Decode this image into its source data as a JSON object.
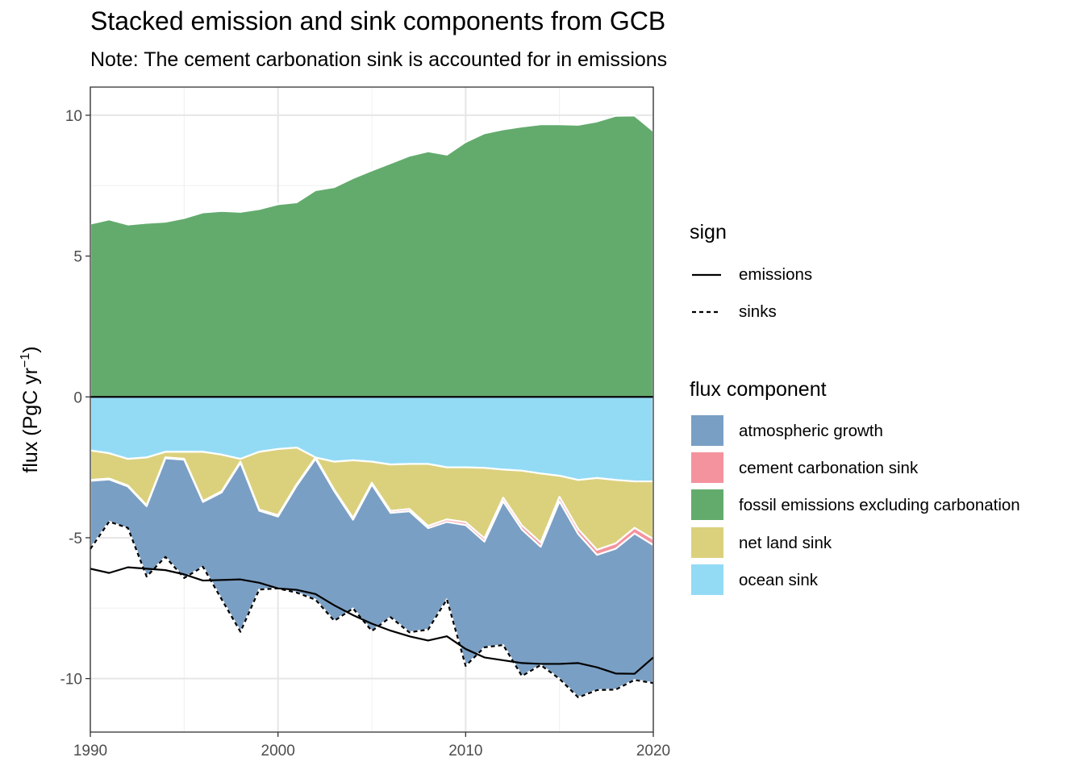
{
  "title": "Stacked emission and sink components from GCB",
  "subtitle": "Note: The cement carbonation sink is accounted for in emissions",
  "chart_data": {
    "type": "area",
    "ylabel": "flux (PgC yr",
    "ylabel_sup": "−1",
    "ylabel_end": ")",
    "xlim": [
      1990,
      2020
    ],
    "ylim": [
      -11.9,
      11
    ],
    "x_ticks": [
      1990,
      2000,
      2010,
      2020
    ],
    "y_ticks": [
      10,
      5,
      0,
      -5,
      -10
    ],
    "y_tick_labels": [
      "10",
      "5",
      "0",
      "-5",
      "-10"
    ],
    "grid": true,
    "legend_position": "right",
    "x": [
      1990,
      1991,
      1992,
      1993,
      1994,
      1995,
      1996,
      1997,
      1998,
      1999,
      2000,
      2001,
      2002,
      2003,
      2004,
      2005,
      2006,
      2007,
      2008,
      2009,
      2010,
      2011,
      2012,
      2013,
      2014,
      2015,
      2016,
      2017,
      2018,
      2019,
      2020
    ],
    "series": [
      {
        "name": "fossil emissions excluding carbonation",
        "color": "#63ab6d",
        "values": [
          6.15,
          6.3,
          6.12,
          6.18,
          6.22,
          6.35,
          6.55,
          6.6,
          6.57,
          6.67,
          6.84,
          6.91,
          7.34,
          7.45,
          7.77,
          8.04,
          8.3,
          8.56,
          8.72,
          8.6,
          9.05,
          9.36,
          9.5,
          9.6,
          9.68,
          9.68,
          9.66,
          9.78,
          9.98,
          9.99,
          9.44
        ]
      },
      {
        "name": "ocean sink",
        "color": "#93dbf4",
        "values": [
          -1.9,
          -2.0,
          -2.2,
          -2.15,
          -1.95,
          -1.95,
          -1.95,
          -2.05,
          -2.2,
          -1.95,
          -1.85,
          -1.8,
          -2.15,
          -2.3,
          -2.25,
          -2.3,
          -2.4,
          -2.38,
          -2.38,
          -2.5,
          -2.5,
          -2.52,
          -2.58,
          -2.62,
          -2.72,
          -2.8,
          -2.95,
          -2.88,
          -2.95,
          -3.0,
          -3.0
        ]
      },
      {
        "name": "net land sink",
        "color": "#dbd17d",
        "values": [
          -1.05,
          -0.9,
          -0.95,
          -1.7,
          -0.2,
          -0.25,
          -1.75,
          -1.3,
          -0.1,
          -2.05,
          -2.35,
          -1.3,
          0.0,
          -1.0,
          -2.05,
          -0.75,
          -1.65,
          -1.6,
          -2.2,
          -1.85,
          -1.95,
          -2.5,
          -1.0,
          -1.95,
          -2.45,
          -0.75,
          -1.75,
          -2.55,
          -2.25,
          -1.65,
          -2.05
        ]
      },
      {
        "name": "cement carbonation sink",
        "color": "#f4939e",
        "values": [
          -0.03,
          -0.03,
          -0.03,
          -0.03,
          -0.03,
          -0.03,
          -0.03,
          -0.04,
          -0.04,
          -0.04,
          -0.05,
          -0.05,
          -0.05,
          -0.05,
          -0.06,
          -0.06,
          -0.07,
          -0.08,
          -0.08,
          -0.09,
          -0.1,
          -0.12,
          -0.13,
          -0.14,
          -0.15,
          -0.16,
          -0.17,
          -0.18,
          -0.19,
          -0.2,
          -0.21
        ]
      },
      {
        "name": "atmospheric growth",
        "color": "#7a9fc4",
        "values": [
          -2.4,
          -1.5,
          -1.5,
          -2.5,
          -3.5,
          -4.2,
          -2.3,
          -3.8,
          -6.0,
          -2.8,
          -2.55,
          -3.8,
          -5.0,
          -4.6,
          -3.15,
          -5.2,
          -3.7,
          -4.3,
          -3.6,
          -2.75,
          -5.0,
          -3.75,
          -5.1,
          -5.2,
          -4.2,
          -6.3,
          -5.8,
          -4.8,
          -5.0,
          -5.2,
          -4.9
        ]
      },
      {
        "name": "emissions",
        "style": "solid",
        "values": [
          -6.1,
          -6.25,
          -6.05,
          -6.1,
          -6.15,
          -6.3,
          -6.52,
          -6.5,
          -6.48,
          -6.6,
          -6.8,
          -6.85,
          -7.0,
          -7.4,
          -7.75,
          -8.05,
          -8.3,
          -8.5,
          -8.65,
          -8.5,
          -8.95,
          -9.25,
          -9.35,
          -9.45,
          -9.48,
          -9.48,
          -9.45,
          -9.6,
          -9.82,
          -9.83,
          -9.25
        ]
      },
      {
        "name": "sinks",
        "style": "dashed",
        "values": [
          -5.4,
          -4.43,
          -4.65,
          -6.38,
          -5.68,
          -6.43,
          -6.03,
          -7.19,
          -8.34,
          -6.84,
          -6.8,
          -6.95,
          -7.2,
          -7.95,
          -7.51,
          -8.31,
          -7.82,
          -8.36,
          -8.26,
          -7.19,
          -9.55,
          -8.89,
          -8.81,
          -9.91,
          -9.52,
          -10.01,
          -10.67,
          -10.41,
          -10.39,
          -10.05,
          -10.16
        ]
      }
    ]
  },
  "legend_sign": {
    "title": "sign",
    "items": [
      {
        "label": "emissions",
        "style": "solid"
      },
      {
        "label": "sinks",
        "style": "dashed"
      }
    ]
  },
  "legend_flux": {
    "title": "flux component",
    "items": [
      {
        "label": "atmospheric growth",
        "color": "#7a9fc4"
      },
      {
        "label": "cement carbonation sink",
        "color": "#f4939e"
      },
      {
        "label": "fossil emissions excluding carbonation",
        "color": "#63ab6d"
      },
      {
        "label": "net land sink",
        "color": "#dbd17d"
      },
      {
        "label": "ocean sink",
        "color": "#93dbf4"
      }
    ]
  }
}
